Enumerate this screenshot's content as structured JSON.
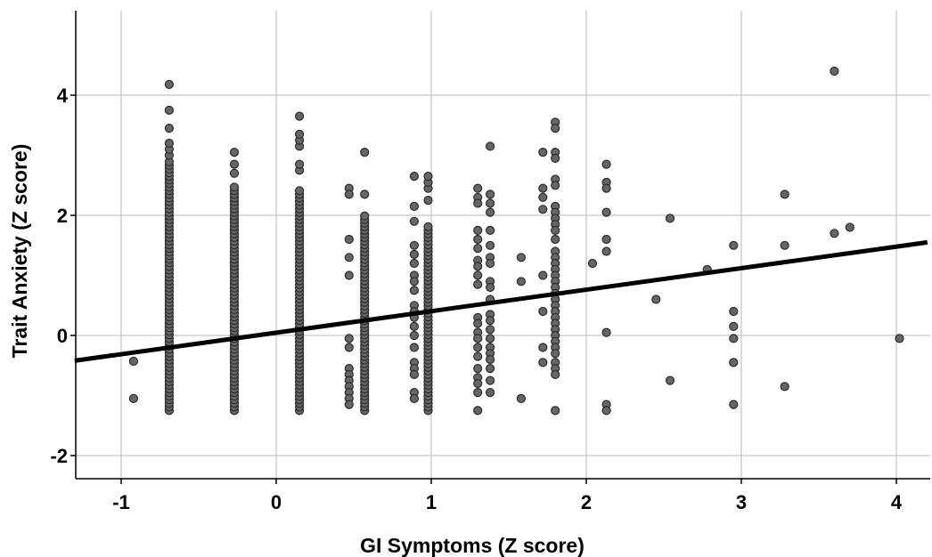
{
  "chart_data": {
    "type": "scatter",
    "title": "",
    "xlabel": "GI Symptoms (Z score)",
    "ylabel": "Trait Anxiety (Z score)",
    "xlim": [
      -1.3,
      4.2
    ],
    "ylim": [
      -2.4,
      5.4
    ],
    "x_ticks": [
      -1,
      0,
      1,
      2,
      3,
      4
    ],
    "y_ticks": [
      -2,
      0,
      2,
      4
    ],
    "x_tick_labels": [
      "-1",
      "0",
      "1",
      "2",
      "3",
      "4"
    ],
    "y_tick_labels": [
      "-2",
      "0",
      "2",
      "4"
    ],
    "grid": true,
    "colors": {
      "point_fill": "#666666",
      "point_stroke": "#2b2b2b",
      "fit_line": "#000000",
      "grid": "#c8c8c8"
    },
    "fit_line": {
      "x": [
        -1.3,
        4.2
      ],
      "y": [
        -0.42,
        1.55
      ]
    },
    "point_columns": [
      {
        "x": -0.69,
        "y_min": -1.25,
        "y_max": 2.9,
        "step": 0.06,
        "extra": [
          3.0,
          3.1,
          3.2,
          3.45,
          3.75,
          4.18
        ]
      },
      {
        "x": -0.27,
        "y_min": -1.25,
        "y_max": 2.5,
        "step": 0.06,
        "extra": [
          2.7,
          2.85,
          3.05
        ]
      },
      {
        "x": 0.15,
        "y_min": -1.25,
        "y_max": 2.45,
        "step": 0.06,
        "extra": [
          2.75,
          2.85,
          3.15,
          3.25,
          3.35,
          3.65
        ]
      },
      {
        "x": 0.57,
        "y_min": -1.25,
        "y_max": 2.0,
        "step": 0.06,
        "extra": [
          2.35,
          3.05
        ]
      },
      {
        "x": 0.98,
        "y_min": -1.25,
        "y_max": 1.85,
        "step": 0.06,
        "extra": [
          2.25,
          2.45,
          2.55,
          2.65
        ]
      }
    ],
    "points": [
      {
        "x": -0.92,
        "y": -0.43
      },
      {
        "x": -0.92,
        "y": -1.05
      },
      {
        "x": 0.47,
        "y": 2.45
      },
      {
        "x": 0.47,
        "y": 2.35
      },
      {
        "x": 0.47,
        "y": 1.6
      },
      {
        "x": 0.47,
        "y": 1.3
      },
      {
        "x": 0.47,
        "y": 1.0
      },
      {
        "x": 0.47,
        "y": -0.05
      },
      {
        "x": 0.47,
        "y": -0.2
      },
      {
        "x": 0.47,
        "y": -0.55
      },
      {
        "x": 0.47,
        "y": -0.65
      },
      {
        "x": 0.47,
        "y": -0.75
      },
      {
        "x": 0.47,
        "y": -0.85
      },
      {
        "x": 0.47,
        "y": -0.95
      },
      {
        "x": 0.47,
        "y": -1.05
      },
      {
        "x": 0.47,
        "y": -1.15
      },
      {
        "x": 0.89,
        "y": 2.65
      },
      {
        "x": 0.89,
        "y": 2.15
      },
      {
        "x": 0.89,
        "y": 1.9
      },
      {
        "x": 0.89,
        "y": 1.5
      },
      {
        "x": 0.89,
        "y": 1.35
      },
      {
        "x": 0.89,
        "y": 1.2
      },
      {
        "x": 0.89,
        "y": 1.0
      },
      {
        "x": 0.89,
        "y": 0.9
      },
      {
        "x": 0.89,
        "y": 0.75
      },
      {
        "x": 0.89,
        "y": 0.5
      },
      {
        "x": 0.89,
        "y": 0.4
      },
      {
        "x": 0.89,
        "y": 0.3
      },
      {
        "x": 0.89,
        "y": 0.15
      },
      {
        "x": 0.89,
        "y": 0.0
      },
      {
        "x": 0.89,
        "y": -0.2
      },
      {
        "x": 0.89,
        "y": -0.45
      },
      {
        "x": 0.89,
        "y": -0.55
      },
      {
        "x": 0.89,
        "y": -0.65
      },
      {
        "x": 0.89,
        "y": -0.95
      },
      {
        "x": 0.89,
        "y": -1.05
      },
      {
        "x": 1.3,
        "y": 2.45
      },
      {
        "x": 1.3,
        "y": 2.3
      },
      {
        "x": 1.3,
        "y": 2.2
      },
      {
        "x": 1.3,
        "y": 1.75
      },
      {
        "x": 1.3,
        "y": 1.6
      },
      {
        "x": 1.3,
        "y": 1.45
      },
      {
        "x": 1.3,
        "y": 1.25
      },
      {
        "x": 1.3,
        "y": 1.15
      },
      {
        "x": 1.3,
        "y": 1.0
      },
      {
        "x": 1.3,
        "y": 0.85
      },
      {
        "x": 1.3,
        "y": 0.3
      },
      {
        "x": 1.3,
        "y": 0.2
      },
      {
        "x": 1.3,
        "y": 0.05
      },
      {
        "x": 1.3,
        "y": -0.05
      },
      {
        "x": 1.3,
        "y": -0.2
      },
      {
        "x": 1.3,
        "y": -0.35
      },
      {
        "x": 1.3,
        "y": -0.55
      },
      {
        "x": 1.3,
        "y": -0.7
      },
      {
        "x": 1.3,
        "y": -0.8
      },
      {
        "x": 1.3,
        "y": -0.95
      },
      {
        "x": 1.3,
        "y": -1.25
      },
      {
        "x": 1.38,
        "y": 3.15
      },
      {
        "x": 1.38,
        "y": 2.35
      },
      {
        "x": 1.38,
        "y": 2.2
      },
      {
        "x": 1.38,
        "y": 2.05
      },
      {
        "x": 1.38,
        "y": 1.75
      },
      {
        "x": 1.38,
        "y": 1.5
      },
      {
        "x": 1.38,
        "y": 1.3
      },
      {
        "x": 1.38,
        "y": 1.2
      },
      {
        "x": 1.38,
        "y": 0.9
      },
      {
        "x": 1.38,
        "y": 0.8
      },
      {
        "x": 1.38,
        "y": 0.6
      },
      {
        "x": 1.38,
        "y": 0.35
      },
      {
        "x": 1.38,
        "y": 0.25
      },
      {
        "x": 1.38,
        "y": 0.1
      },
      {
        "x": 1.38,
        "y": -0.05
      },
      {
        "x": 1.38,
        "y": -0.2
      },
      {
        "x": 1.38,
        "y": -0.3
      },
      {
        "x": 1.38,
        "y": -0.4
      },
      {
        "x": 1.38,
        "y": -0.55
      },
      {
        "x": 1.38,
        "y": -0.75
      },
      {
        "x": 1.38,
        "y": -0.95
      },
      {
        "x": 1.58,
        "y": 1.3
      },
      {
        "x": 1.58,
        "y": 0.9
      },
      {
        "x": 1.58,
        "y": -1.05
      },
      {
        "x": 1.72,
        "y": 3.05
      },
      {
        "x": 1.72,
        "y": 2.45
      },
      {
        "x": 1.72,
        "y": 2.3
      },
      {
        "x": 1.72,
        "y": 2.1
      },
      {
        "x": 1.72,
        "y": 1.0
      },
      {
        "x": 1.72,
        "y": 0.4
      },
      {
        "x": 1.72,
        "y": -0.2
      },
      {
        "x": 1.72,
        "y": -0.45
      },
      {
        "x": 1.8,
        "y": 3.55
      },
      {
        "x": 1.8,
        "y": 3.45
      },
      {
        "x": 1.8,
        "y": 3.05
      },
      {
        "x": 1.8,
        "y": 2.95
      },
      {
        "x": 1.8,
        "y": 2.6
      },
      {
        "x": 1.8,
        "y": 2.5
      },
      {
        "x": 1.8,
        "y": 2.15
      },
      {
        "x": 1.8,
        "y": 2.05
      },
      {
        "x": 1.8,
        "y": 1.95
      },
      {
        "x": 1.8,
        "y": 1.85
      },
      {
        "x": 1.8,
        "y": 1.75
      },
      {
        "x": 1.8,
        "y": 1.6
      },
      {
        "x": 1.8,
        "y": 1.4
      },
      {
        "x": 1.8,
        "y": 1.3
      },
      {
        "x": 1.8,
        "y": 1.2
      },
      {
        "x": 1.8,
        "y": 1.1
      },
      {
        "x": 1.8,
        "y": 1.0
      },
      {
        "x": 1.8,
        "y": 0.9
      },
      {
        "x": 1.8,
        "y": 0.8
      },
      {
        "x": 1.8,
        "y": 0.7
      },
      {
        "x": 1.8,
        "y": 0.6
      },
      {
        "x": 1.8,
        "y": 0.5
      },
      {
        "x": 1.8,
        "y": 0.4
      },
      {
        "x": 1.8,
        "y": 0.3
      },
      {
        "x": 1.8,
        "y": 0.2
      },
      {
        "x": 1.8,
        "y": 0.1
      },
      {
        "x": 1.8,
        "y": 0.0
      },
      {
        "x": 1.8,
        "y": -0.1
      },
      {
        "x": 1.8,
        "y": -0.2
      },
      {
        "x": 1.8,
        "y": -0.3
      },
      {
        "x": 1.8,
        "y": -0.45
      },
      {
        "x": 1.8,
        "y": -0.55
      },
      {
        "x": 1.8,
        "y": -0.65
      },
      {
        "x": 1.8,
        "y": -1.25
      },
      {
        "x": 2.04,
        "y": 1.2
      },
      {
        "x": 2.13,
        "y": 2.85
      },
      {
        "x": 2.13,
        "y": 2.55
      },
      {
        "x": 2.13,
        "y": 2.45
      },
      {
        "x": 2.13,
        "y": 2.05
      },
      {
        "x": 2.13,
        "y": 1.6
      },
      {
        "x": 2.13,
        "y": 1.4
      },
      {
        "x": 2.13,
        "y": 0.05
      },
      {
        "x": 2.13,
        "y": -1.15
      },
      {
        "x": 2.13,
        "y": -1.25
      },
      {
        "x": 2.45,
        "y": 0.6
      },
      {
        "x": 2.54,
        "y": 1.95
      },
      {
        "x": 2.54,
        "y": -0.75
      },
      {
        "x": 2.78,
        "y": 1.1
      },
      {
        "x": 2.95,
        "y": 1.5
      },
      {
        "x": 2.95,
        "y": 0.4
      },
      {
        "x": 2.95,
        "y": 0.15
      },
      {
        "x": 2.95,
        "y": -0.05
      },
      {
        "x": 2.95,
        "y": -0.45
      },
      {
        "x": 2.95,
        "y": -1.15
      },
      {
        "x": 3.28,
        "y": 2.35
      },
      {
        "x": 3.28,
        "y": 1.5
      },
      {
        "x": 3.28,
        "y": -0.85
      },
      {
        "x": 3.6,
        "y": 4.4
      },
      {
        "x": 3.6,
        "y": 1.7
      },
      {
        "x": 3.7,
        "y": 1.8
      },
      {
        "x": 4.02,
        "y": -0.05
      }
    ]
  }
}
